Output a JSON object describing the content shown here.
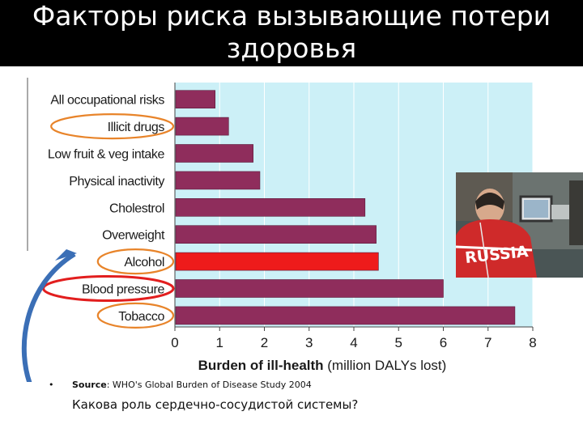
{
  "slide": {
    "title_line1": "Факторы риска вызывающие потери",
    "title_line2": "здоровья",
    "source_prefix": "Source",
    "source_rest": ": WHO's Global Burden of Disease Study 2004",
    "question": "Какова роль сердечно-сосудистой системы?",
    "bullet_glyph": "•"
  },
  "chart_data": {
    "type": "bar",
    "orientation": "horizontal",
    "categories": [
      "All occupational risks",
      "Illicit drugs",
      "Low fruit & veg intake",
      "Physical inactivity",
      "Cholestrol",
      "Overweight",
      "Alcohol",
      "Blood pressure",
      "Tobacco"
    ],
    "values": [
      0.9,
      1.2,
      1.75,
      1.9,
      4.25,
      4.5,
      4.55,
      6.0,
      7.6
    ],
    "highlighted_category": "Alcohol",
    "circled_categories": [
      "Illicit drugs",
      "Alcohol",
      "Blood pressure",
      "Tobacco"
    ],
    "xlim": [
      0,
      8
    ],
    "xticks": [
      0,
      1,
      2,
      3,
      4,
      5,
      6,
      7,
      8
    ],
    "xlabel_bold": "Burden of ill-health",
    "xlabel_rest": "(million DALYs lost)",
    "grid": "vertical",
    "colors": {
      "bar": "#8f2d5c",
      "highlight_bar": "#ee1b1b",
      "plot_background": "#ccf0f7",
      "circle_orange": "#e8842a",
      "circle_red": "#e21e1e",
      "arrow": "#3b6fb6"
    }
  }
}
